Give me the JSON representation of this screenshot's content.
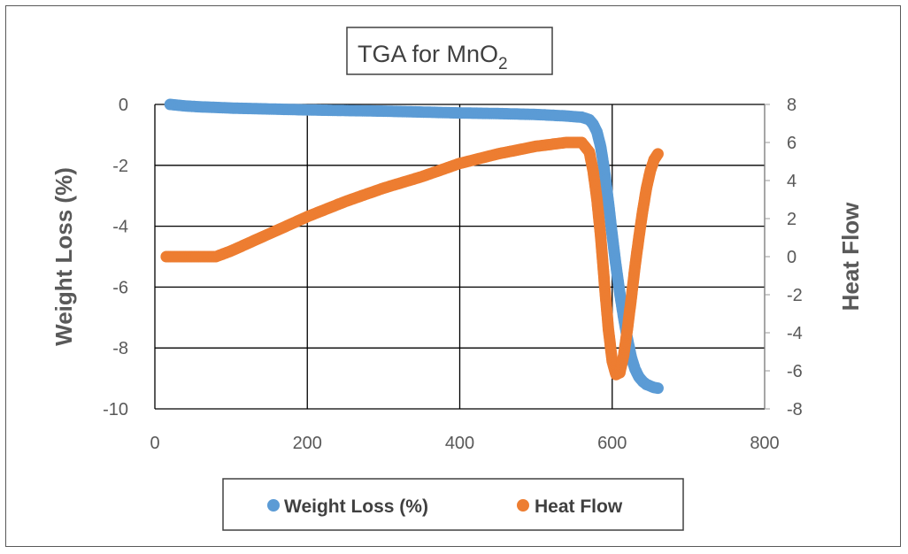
{
  "chart_data": {
    "type": "scatter",
    "title": "TGA for MnO",
    "title_subscript": "2",
    "xlabel": "",
    "ylabel": "Weight Loss (%)",
    "y2label": "Heat Flow",
    "xlim": [
      0,
      800
    ],
    "ylim": [
      -10,
      0
    ],
    "y2lim": [
      -8,
      8
    ],
    "x_ticks": [
      "0",
      "200",
      "400",
      "600",
      "800"
    ],
    "y_ticks": [
      "0",
      "-2",
      "-4",
      "-6",
      "-8",
      "-10"
    ],
    "y2_ticks": [
      "8",
      "6",
      "4",
      "2",
      "0",
      "-2",
      "-4",
      "-6",
      "-8"
    ],
    "grid": true,
    "legend_position": "bottom",
    "series": [
      {
        "name": "Weight Loss (%)",
        "axis": "left",
        "color": "#5B9BD5",
        "points": [
          [
            20,
            0
          ],
          [
            40,
            -0.05
          ],
          [
            60,
            -0.08
          ],
          [
            80,
            -0.1
          ],
          [
            100,
            -0.12
          ],
          [
            150,
            -0.15
          ],
          [
            200,
            -0.18
          ],
          [
            250,
            -0.2
          ],
          [
            300,
            -0.22
          ],
          [
            350,
            -0.25
          ],
          [
            400,
            -0.28
          ],
          [
            450,
            -0.3
          ],
          [
            500,
            -0.33
          ],
          [
            540,
            -0.38
          ],
          [
            560,
            -0.42
          ],
          [
            570,
            -0.5
          ],
          [
            575,
            -0.65
          ],
          [
            580,
            -0.9
          ],
          [
            585,
            -1.4
          ],
          [
            590,
            -2.2
          ],
          [
            595,
            -3.2
          ],
          [
            600,
            -4.3
          ],
          [
            605,
            -5.3
          ],
          [
            610,
            -6.2
          ],
          [
            615,
            -7.0
          ],
          [
            620,
            -7.7
          ],
          [
            625,
            -8.3
          ],
          [
            630,
            -8.7
          ],
          [
            635,
            -8.95
          ],
          [
            640,
            -9.1
          ],
          [
            645,
            -9.2
          ],
          [
            650,
            -9.25
          ],
          [
            655,
            -9.3
          ],
          [
            660,
            -9.32
          ]
        ]
      },
      {
        "name": "Heat Flow",
        "axis": "right",
        "color": "#ED7D31",
        "points": [
          [
            15,
            0
          ],
          [
            40,
            0
          ],
          [
            60,
            0
          ],
          [
            80,
            0
          ],
          [
            100,
            0.3
          ],
          [
            150,
            1.2
          ],
          [
            200,
            2.1
          ],
          [
            250,
            2.9
          ],
          [
            300,
            3.6
          ],
          [
            350,
            4.2
          ],
          [
            400,
            4.9
          ],
          [
            450,
            5.4
          ],
          [
            500,
            5.8
          ],
          [
            540,
            6.0
          ],
          [
            560,
            6.0
          ],
          [
            570,
            5.5
          ],
          [
            575,
            4.5
          ],
          [
            580,
            3.0
          ],
          [
            585,
            1.0
          ],
          [
            590,
            -1.5
          ],
          [
            595,
            -3.8
          ],
          [
            600,
            -5.5
          ],
          [
            605,
            -6.2
          ],
          [
            610,
            -6.1
          ],
          [
            615,
            -5.2
          ],
          [
            620,
            -3.8
          ],
          [
            625,
            -2.2
          ],
          [
            630,
            -0.5
          ],
          [
            635,
            1.0
          ],
          [
            640,
            2.4
          ],
          [
            645,
            3.6
          ],
          [
            650,
            4.5
          ],
          [
            655,
            5.1
          ],
          [
            660,
            5.4
          ]
        ]
      }
    ]
  }
}
